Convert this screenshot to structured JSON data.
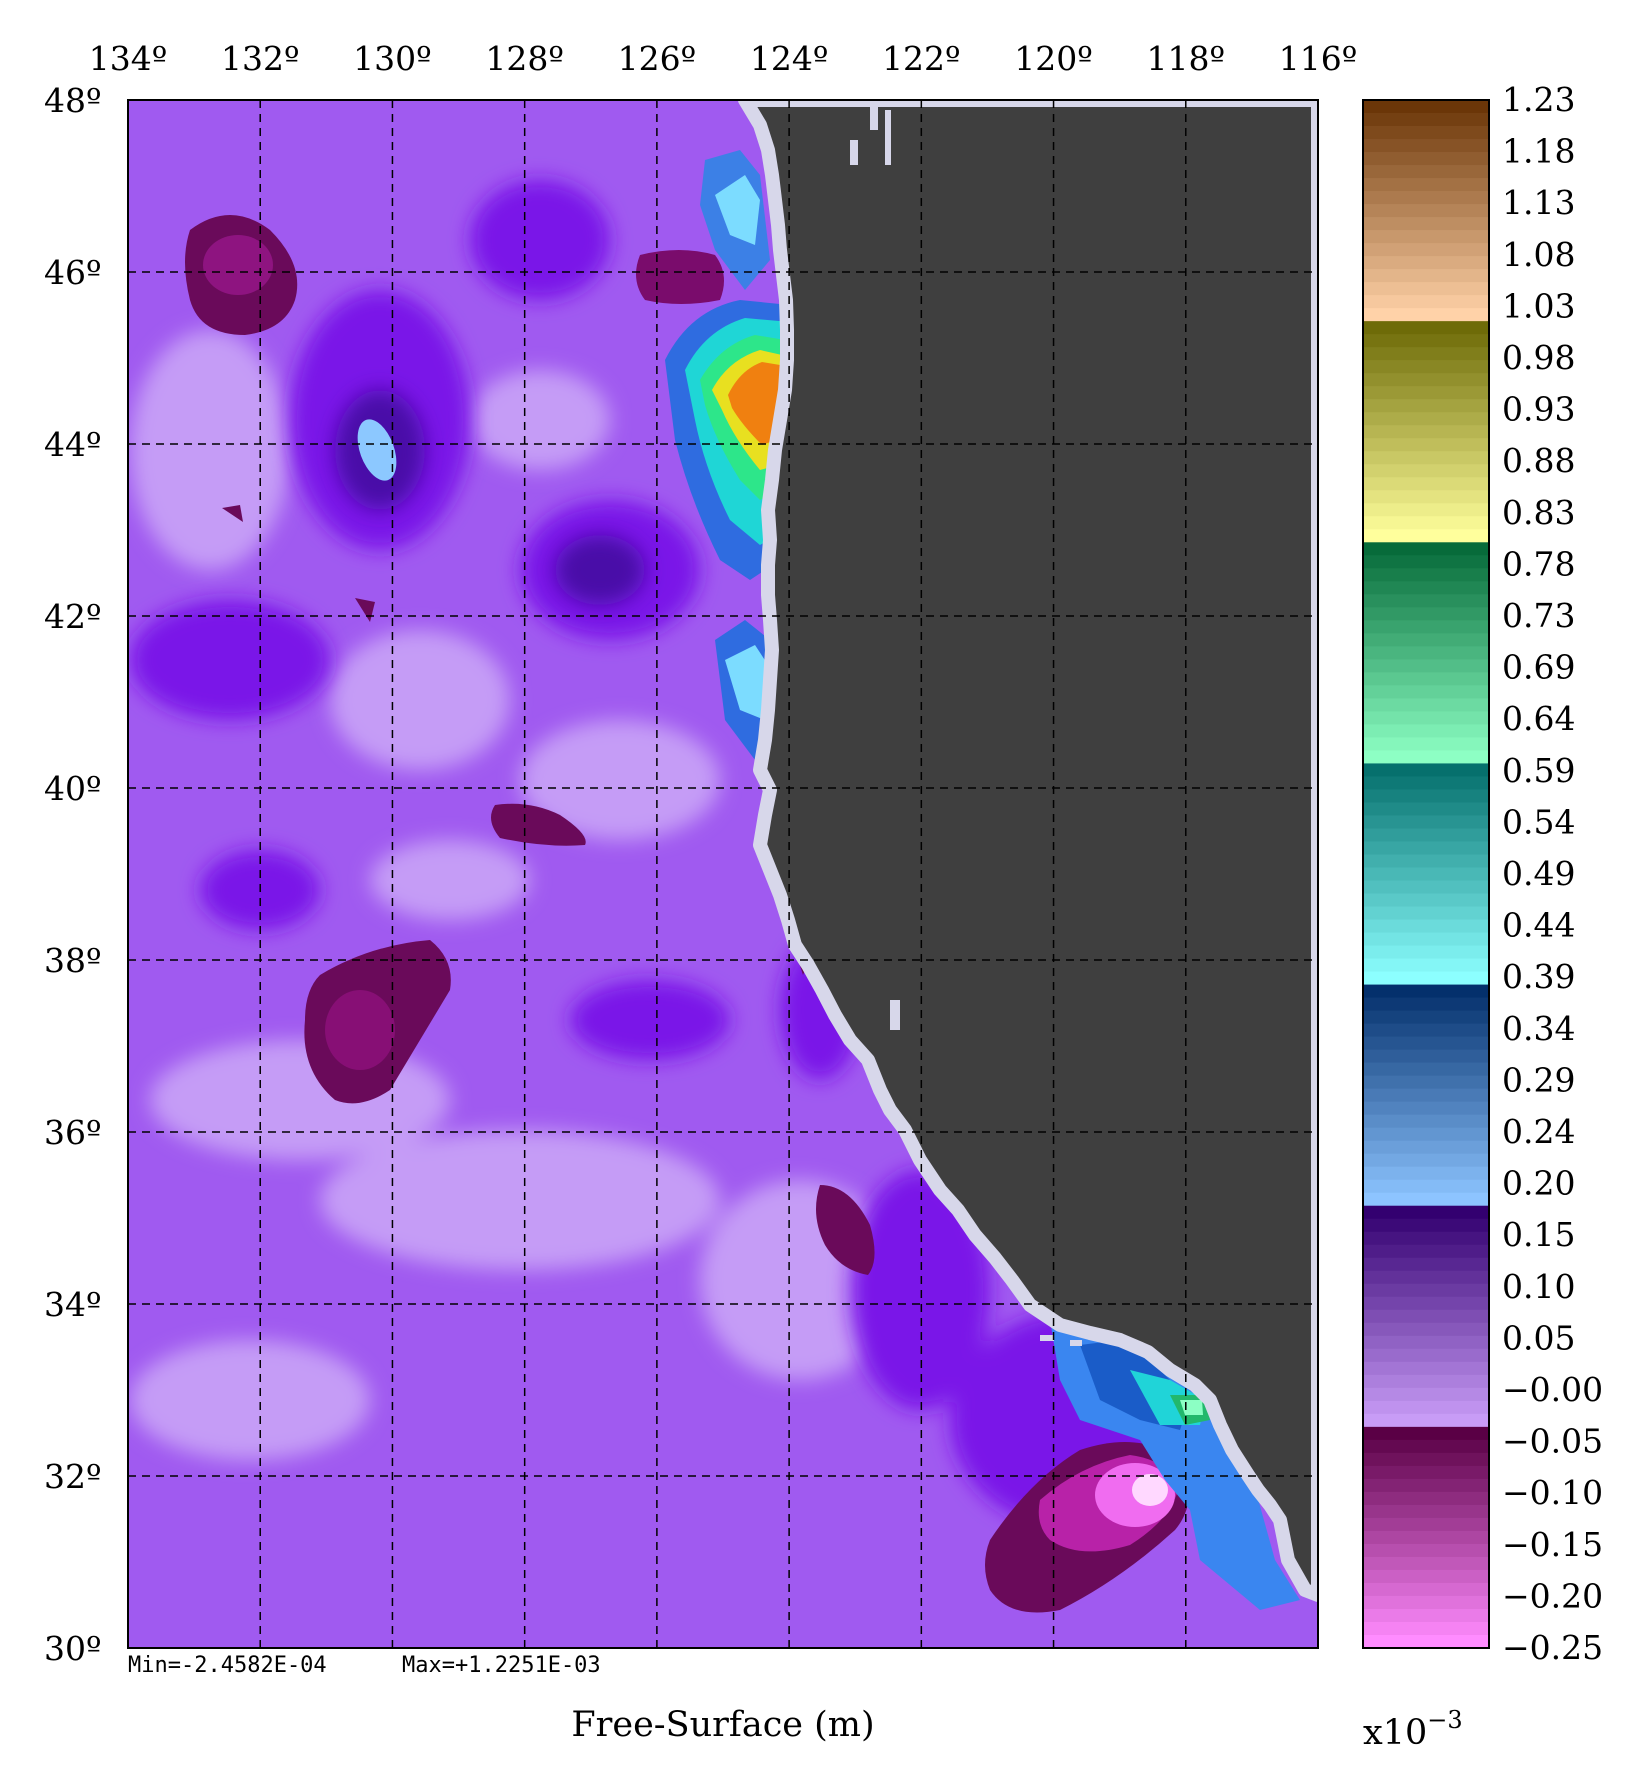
{
  "map": {
    "lon_ticks": [
      "134º",
      "132º",
      "130º",
      "128º",
      "126º",
      "124º",
      "122º",
      "120º",
      "118º",
      "116º"
    ],
    "lat_ticks": [
      "48º",
      "46º",
      "44º",
      "42º",
      "40º",
      "38º",
      "36º",
      "34º",
      "32º",
      "30º"
    ],
    "stats_min": "Min=-2.4582E-04",
    "stats_max": "Max=+1.2251E-03",
    "xlabel": "Free-Surface (m)",
    "land_color": "#3f3f3f",
    "ocean_base_color": "#a05af0"
  },
  "colorbar": {
    "labels": [
      "1.23",
      "1.18",
      "1.13",
      "1.08",
      "1.03",
      "0.98",
      "0.93",
      "0.88",
      "0.83",
      "0.78",
      "0.73",
      "0.69",
      "0.64",
      "0.59",
      "0.54",
      "0.49",
      "0.44",
      "0.39",
      "0.34",
      "0.29",
      "0.24",
      "0.20",
      "0.15",
      "0.10",
      "0.05",
      "−0.00",
      "−0.05",
      "−0.10",
      "−0.15",
      "−0.20",
      "−0.25"
    ],
    "scale_base": "x10",
    "scale_exp": "−3",
    "groups_top_to_bottom": [
      {
        "name": "brown-orange",
        "from": "#6b3608",
        "to": "#ffd2a8"
      },
      {
        "name": "olive-yellow",
        "from": "#6e6b08",
        "to": "#ffff9c"
      },
      {
        "name": "green",
        "from": "#076b3a",
        "to": "#8dffc4"
      },
      {
        "name": "teal-cyan",
        "from": "#06706d",
        "to": "#8cffff"
      },
      {
        "name": "blue",
        "from": "#04306c",
        "to": "#8dc4ff"
      },
      {
        "name": "indigo-violet",
        "from": "#330070",
        "to": "#c89cf6"
      },
      {
        "name": "magenta",
        "from": "#5a0045",
        "to": "#ff8cff"
      }
    ]
  }
}
